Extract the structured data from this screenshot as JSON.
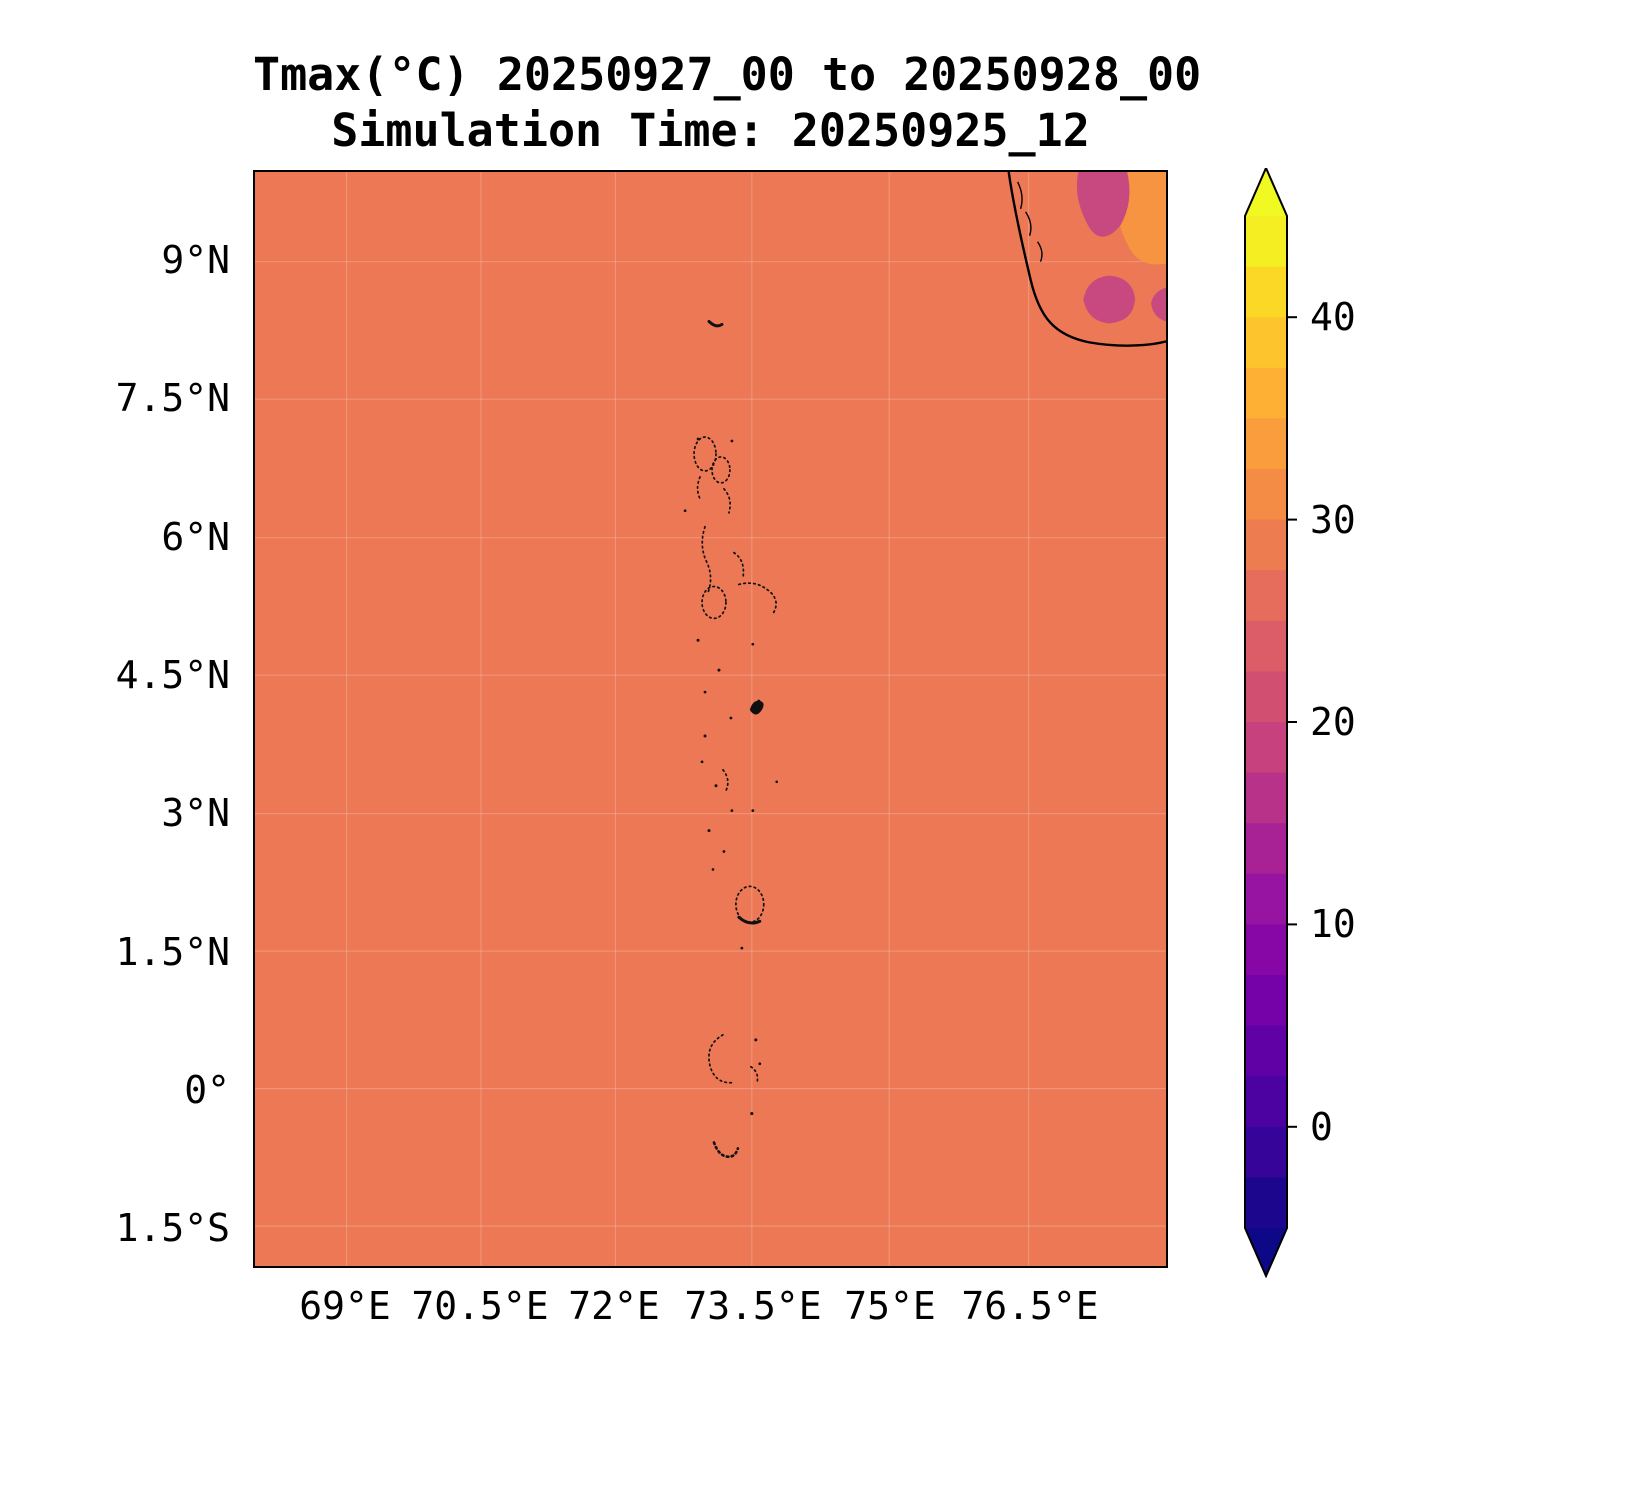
{
  "figure": {
    "title_line1": "Tmax(°C) 20250927_00 to 20250928_00",
    "title_line2": "Simulation Time: 20250925_12"
  },
  "chart_data": {
    "type": "heatmap",
    "title": "Tmax(°C) 20250927_00 to 20250928_00",
    "subtitle": "Simulation Time: 20250925_12",
    "variable": "Tmax",
    "units": "°C",
    "x_axis": {
      "tick_labels": [
        "69°E",
        "70.5°E",
        "72°E",
        "73.5°E",
        "75°E",
        "76.5°E"
      ],
      "range": [
        "68°E",
        "78°E"
      ]
    },
    "y_axis": {
      "tick_labels": [
        "9°N",
        "7.5°N",
        "6°N",
        "4.5°N",
        "3°N",
        "1.5°N",
        "0°",
        "1.5°S"
      ],
      "range": [
        "2°S",
        "10°N"
      ]
    },
    "colorbar": {
      "tick_labels": [
        "40",
        "30",
        "20",
        "10",
        "0"
      ],
      "ticks": [
        40,
        30,
        20,
        10,
        0
      ],
      "vmin": -5,
      "vmax": 45,
      "band_step_c": 2.5,
      "colormap": "plasma",
      "over_color": "#f0f921",
      "under_color": "#0d0887",
      "band_colors_top_to_bottom": [
        "#f4ee23",
        "#fad825",
        "#fdc42d",
        "#fdb033",
        "#fa9d3c",
        "#f58c46",
        "#ee7c51",
        "#e66c5c",
        "#dc5d67",
        "#d15072",
        "#c6417e",
        "#b9328a",
        "#a82296",
        "#9713a1",
        "#8707a6",
        "#7501a8",
        "#6001a6",
        "#4c02a1",
        "#360498",
        "#1c068e"
      ]
    },
    "field": {
      "description": "Near-uniform maximum temperature of about 28-29 °C over the ocean around the Maldives; warmer patches of about 31-35 °C (orange) and cooler patches of about 20-23 °C (magenta) over the southwest Indian coast in the top-right corner; Maldives atoll coastlines shown as small black dotted rings along ~73°E.",
      "sea_value_c": 28.5,
      "sea_color": "#ec7855",
      "warm_patch_value_c": 33,
      "warm_patch_color": "#f79441",
      "cool_patch_value_c": 21,
      "cool_patch_color": "#c8497f",
      "coastline_color": "#000000",
      "grid_visible": true
    }
  }
}
